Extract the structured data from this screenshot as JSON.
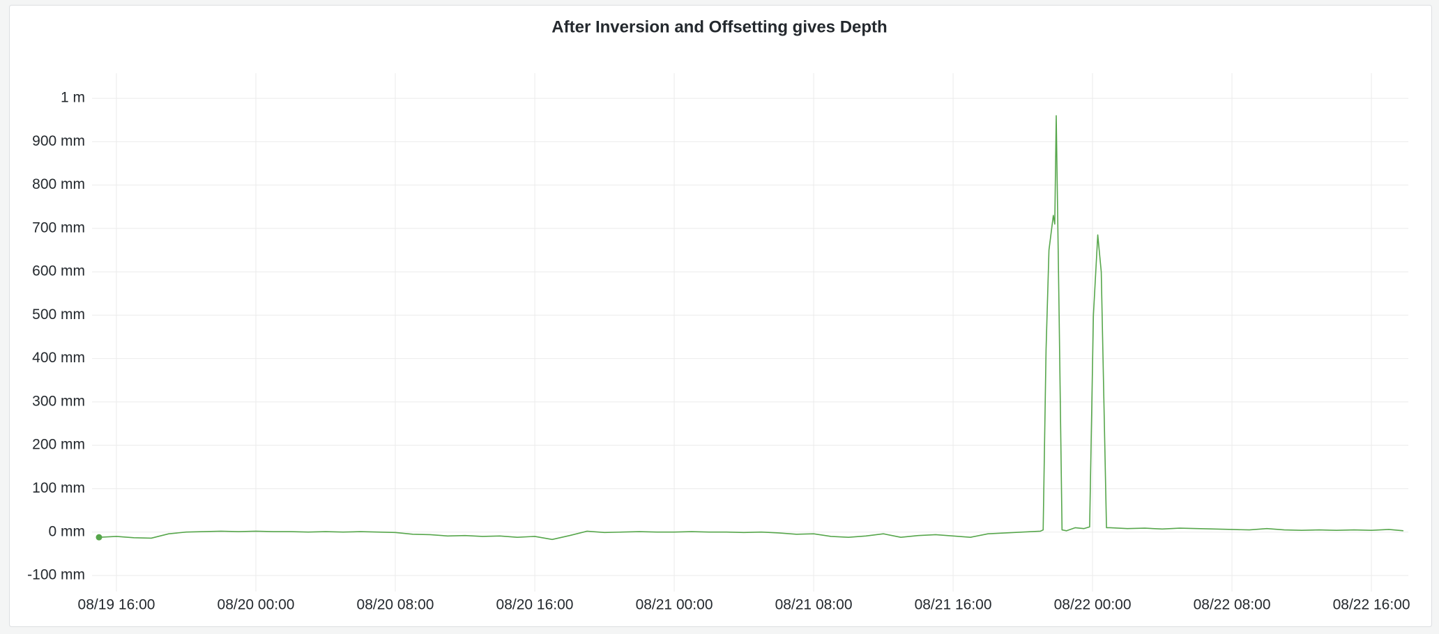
{
  "chart_data": {
    "type": "line",
    "title": "After Inversion and Offsetting gives Depth",
    "color": "#56a64b",
    "grid": true,
    "x": [
      "08/19 15:00",
      "08/19 16:00",
      "08/19 17:00",
      "08/19 18:00",
      "08/19 19:00",
      "08/19 20:00",
      "08/19 21:00",
      "08/19 22:00",
      "08/19 23:00",
      "08/20 00:00",
      "08/20 01:00",
      "08/20 02:00",
      "08/20 03:00",
      "08/20 04:00",
      "08/20 05:00",
      "08/20 06:00",
      "08/20 07:00",
      "08/20 08:00",
      "08/20 09:00",
      "08/20 10:00",
      "08/20 11:00",
      "08/20 12:00",
      "08/20 13:00",
      "08/20 14:00",
      "08/20 15:00",
      "08/20 16:00",
      "08/20 17:00",
      "08/20 18:00",
      "08/20 19:00",
      "08/20 20:00",
      "08/20 21:00",
      "08/20 22:00",
      "08/20 23:00",
      "08/21 00:00",
      "08/21 01:00",
      "08/21 02:00",
      "08/21 03:00",
      "08/21 04:00",
      "08/21 05:00",
      "08/21 06:00",
      "08/21 07:00",
      "08/21 08:00",
      "08/21 09:00",
      "08/21 10:00",
      "08/21 11:00",
      "08/21 12:00",
      "08/21 13:00",
      "08/21 14:00",
      "08/21 15:00",
      "08/21 16:00",
      "08/21 17:00",
      "08/21 18:00",
      "08/21 19:00",
      "08/21 20:00",
      "08/21 21:00",
      "08/21 21:10",
      "08/21 21:20",
      "08/21 21:30",
      "08/21 21:45",
      "08/21 21:50",
      "08/21 21:55",
      "08/21 22:05",
      "08/21 22:15",
      "08/21 22:30",
      "08/21 23:00",
      "08/21 23:30",
      "08/21 23:50",
      "08/22 00:03",
      "08/22 00:18",
      "08/22 00:30",
      "08/22 00:48",
      "08/22 01:00",
      "08/22 02:00",
      "08/22 03:00",
      "08/22 04:00",
      "08/22 05:00",
      "08/22 06:00",
      "08/22 07:00",
      "08/22 08:00",
      "08/22 09:00",
      "08/22 10:00",
      "08/22 11:00",
      "08/22 12:00",
      "08/22 13:00",
      "08/22 14:00",
      "08/22 15:00",
      "08/22 16:00",
      "08/22 17:00",
      "08/22 17:50"
    ],
    "values": [
      -12,
      -10,
      -13,
      -14,
      -4,
      0,
      1,
      2,
      1,
      2,
      1,
      1,
      0,
      1,
      0,
      1,
      0,
      -1,
      -5,
      -6,
      -9,
      -8,
      -10,
      -9,
      -12,
      -10,
      -17,
      -8,
      2,
      -1,
      0,
      1,
      0,
      0,
      1,
      0,
      0,
      -1,
      0,
      -2,
      -5,
      -4,
      -10,
      -12,
      -9,
      -4,
      -12,
      -8,
      -6,
      -9,
      -12,
      -4,
      -2,
      0,
      2,
      5,
      420,
      650,
      730,
      710,
      960,
      500,
      5,
      3,
      10,
      8,
      12,
      500,
      685,
      600,
      10,
      10,
      8,
      9,
      7,
      9,
      8,
      7,
      6,
      5,
      8,
      5,
      4,
      5,
      4,
      5,
      4,
      6,
      3
    ],
    "xlim": [
      "08/19 14:36",
      "08/22 18:07"
    ],
    "xticks": [
      "08/19 16:00",
      "08/20 00:00",
      "08/20 08:00",
      "08/20 16:00",
      "08/21 00:00",
      "08/21 08:00",
      "08/21 16:00",
      "08/22 00:00",
      "08/22 08:00",
      "08/22 16:00"
    ],
    "ylim": [
      -137,
      1058
    ],
    "yticks": [
      {
        "value": -100,
        "label": "-100 mm"
      },
      {
        "value": 0,
        "label": "0 mm"
      },
      {
        "value": 100,
        "label": "100 mm"
      },
      {
        "value": 200,
        "label": "200 mm"
      },
      {
        "value": 300,
        "label": "300 mm"
      },
      {
        "value": 400,
        "label": "400 mm"
      },
      {
        "value": 500,
        "label": "500 mm"
      },
      {
        "value": 600,
        "label": "600 mm"
      },
      {
        "value": 700,
        "label": "700 mm"
      },
      {
        "value": 800,
        "label": "800 mm"
      },
      {
        "value": 900,
        "label": "900 mm"
      },
      {
        "value": 1000,
        "label": "1 m"
      }
    ]
  }
}
